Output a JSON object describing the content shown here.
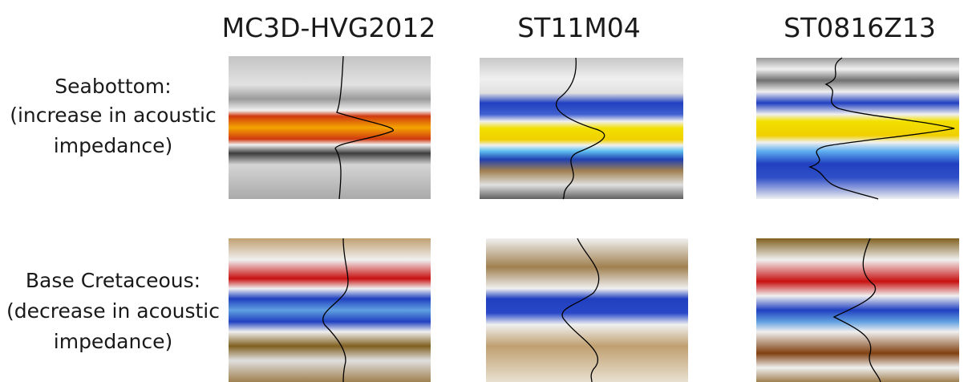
{
  "columns": [
    "MC3D-HVG2012",
    "ST11M04",
    "ST0816Z13"
  ],
  "rows": [
    {
      "lines": [
        "Seabottom:",
        "(increase in acoustic",
        "impedance)"
      ]
    },
    {
      "lines": [
        "Base Cretaceous:",
        "(decrease in acoustic",
        "impedance)"
      ]
    }
  ]
}
